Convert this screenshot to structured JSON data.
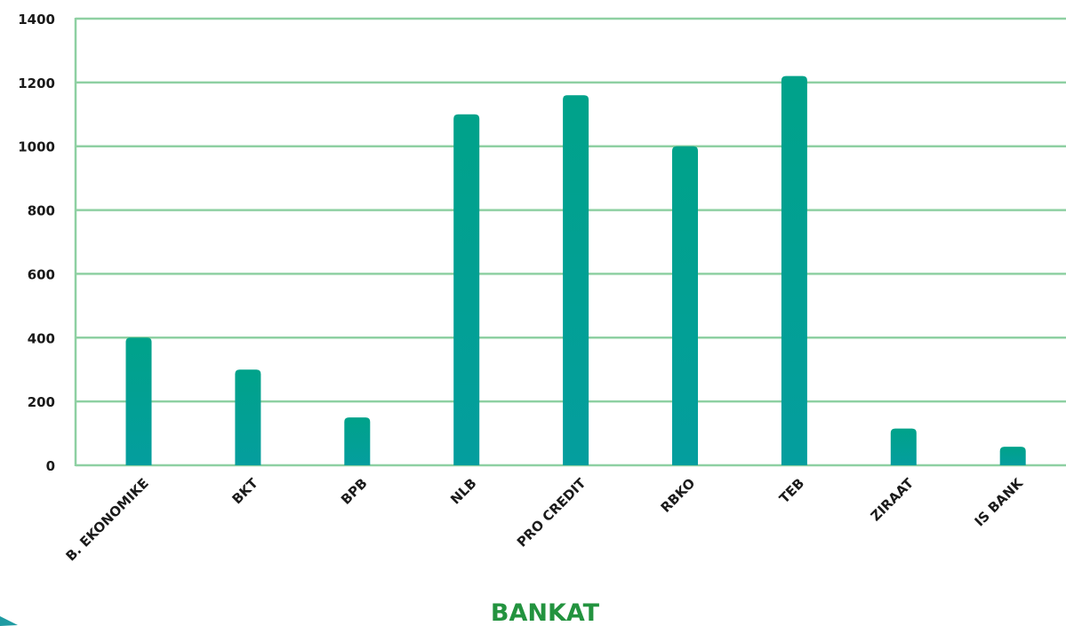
{
  "chart_data": {
    "type": "bar",
    "categories": [
      "B. EKONOMIKE",
      "BKT",
      "BPB",
      "NLB",
      "PRO CREDIT",
      "RBKO",
      "TEB",
      "ZIRAAT",
      "IS BANK"
    ],
    "values": [
      400,
      300,
      150,
      1100,
      1160,
      1000,
      1220,
      115,
      58
    ],
    "xlabel": "BANKAT",
    "ylabel": "",
    "ylim": [
      0,
      1400
    ],
    "yticks": [
      0,
      200,
      400,
      600,
      800,
      1000,
      1200,
      1400
    ],
    "grid": true,
    "colors": {
      "bar_top": "#00A28A",
      "bar_bottom": "#049E9E",
      "grid": "#8ED0A2",
      "xlabel": "#23933F",
      "marker": "#1F9BA2"
    }
  }
}
